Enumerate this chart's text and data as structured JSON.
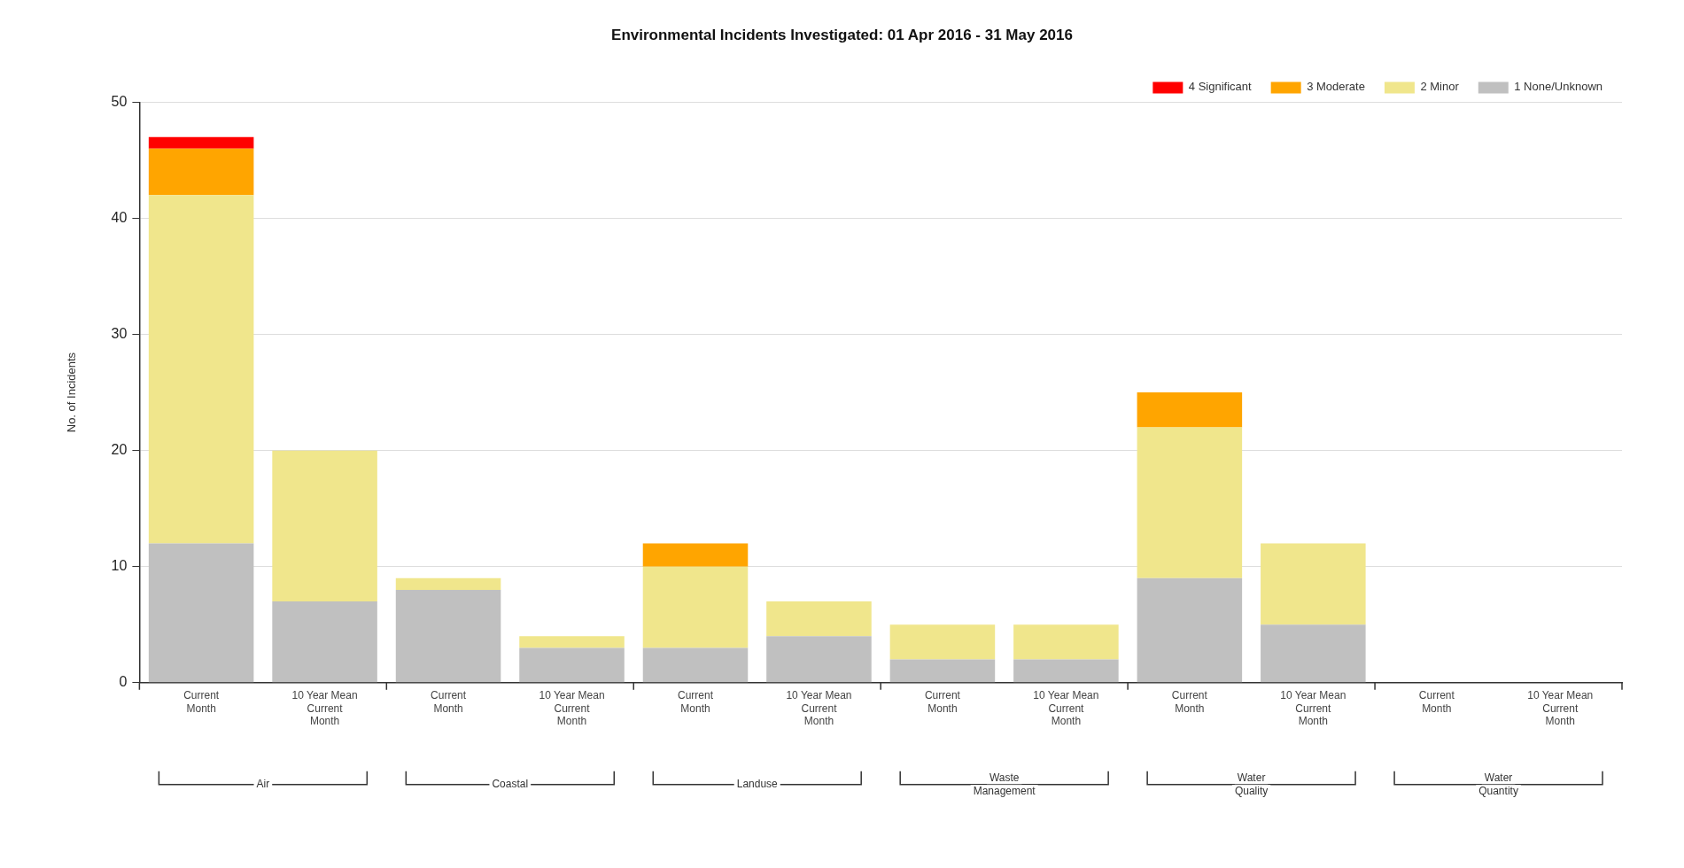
{
  "chart_data": {
    "type": "bar",
    "title": "Environmental Incidents Investigated: 01 Apr 2016 - 31 May 2016",
    "ylabel": "No. of Incidents",
    "categories": [
      "Current\nMonth",
      "10 Year Mean\nCurrent\nMonth",
      "Current\nMonth",
      "10 Year Mean\nCurrent\nMonth",
      "Current\nMonth",
      "10 Year Mean\nCurrent\nMonth",
      "Current\nMonth",
      "10 Year Mean\nCurrent\nMonth",
      "Current\nMonth",
      "10 Year Mean\nCurrent\nMonth",
      "Current\nMonth",
      "10 Year Mean\nCurrent\nMonth"
    ],
    "series": [
      {
        "name": "1 None/Unknown",
        "color": "#c0c0c0",
        "values": [
          12,
          7,
          8,
          3,
          3,
          4,
          2,
          2,
          9,
          5,
          0,
          0
        ]
      },
      {
        "name": "2 Minor",
        "color": "#f0e68c",
        "values": [
          30,
          13,
          1,
          1,
          7,
          3,
          3,
          3,
          13,
          7,
          0,
          0
        ]
      },
      {
        "name": "3 Moderate",
        "color": "#ffa500",
        "values": [
          4,
          0,
          0,
          0,
          2,
          0,
          0,
          0,
          3,
          0,
          0,
          0
        ]
      },
      {
        "name": "4 Significant",
        "color": "#ff0000",
        "values": [
          1,
          0,
          0,
          0,
          0,
          0,
          0,
          0,
          0,
          0,
          0,
          0
        ]
      }
    ],
    "stacked": true,
    "ylim": [
      0,
      50
    ],
    "yticks": [
      0,
      10,
      20,
      30,
      40,
      50
    ],
    "grid": "y",
    "legend": "top right",
    "annotations": [
      "Air",
      "Coastal",
      "Landuse",
      "Waste\nManagement",
      "Water\nQuality",
      "Water\nQuantity"
    ]
  }
}
